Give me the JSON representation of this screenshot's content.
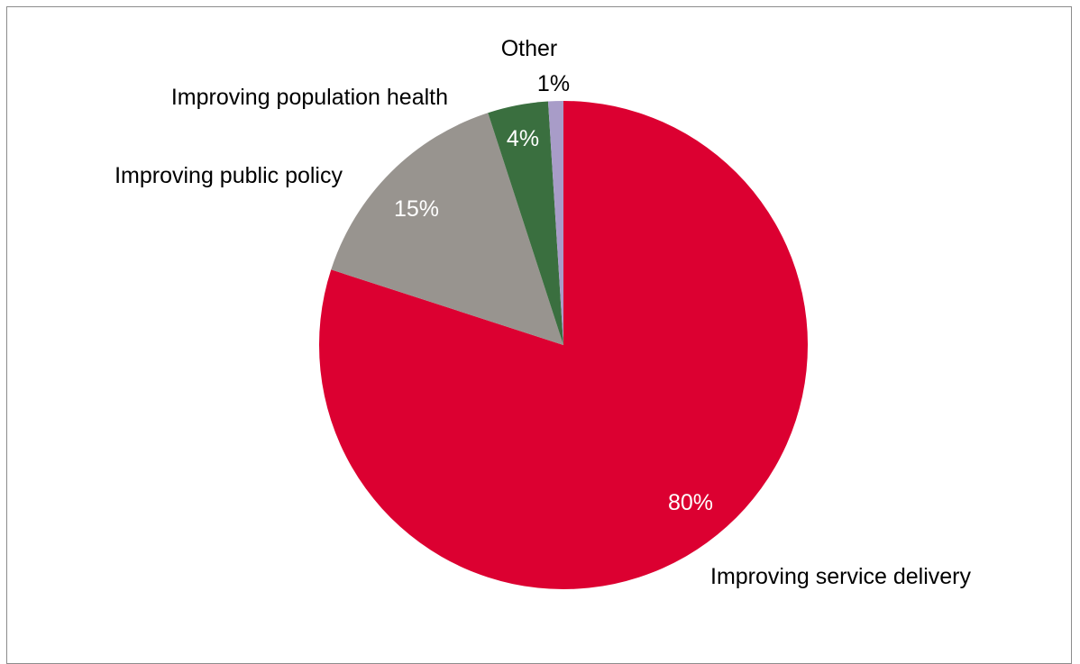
{
  "chart_data": {
    "type": "pie",
    "title": "",
    "legend": "none",
    "start_angle_deg": 0,
    "direction": "clockwise",
    "slices": [
      {
        "label": "Improving service delivery",
        "value": 80,
        "value_label": "80%",
        "color": "#dc0031",
        "value_label_color": "#ffffff"
      },
      {
        "label": "Improving public policy",
        "value": 15,
        "value_label": "15%",
        "color": "#98948f",
        "value_label_color": "#ffffff"
      },
      {
        "label": "Improving population health",
        "value": 4,
        "value_label": "4%",
        "color": "#3a6f3f",
        "value_label_color": "#ffffff"
      },
      {
        "label": "Other",
        "value": 1,
        "value_label": "1%",
        "color": "#a89cc8",
        "value_label_color": "#000000"
      }
    ]
  }
}
